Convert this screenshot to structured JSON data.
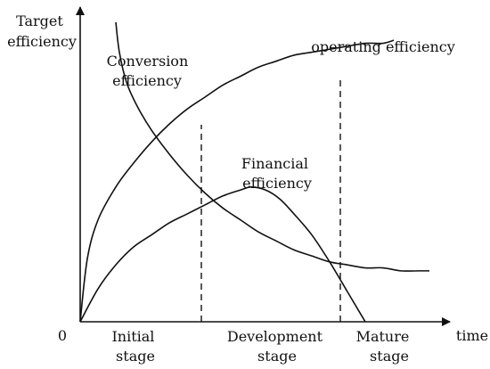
{
  "chart_data": {
    "type": "line",
    "ylabel": [
      "Target",
      "efficiency"
    ],
    "xlabel": "time",
    "origin_label": "0",
    "x_range": [
      0,
      1
    ],
    "y_range": [
      0,
      1
    ],
    "grid": false,
    "legend": "none",
    "series": [
      {
        "name": "operating efficiency",
        "name_lines": [
          "operating efficiency"
        ],
        "points": [
          [
            0,
            0
          ],
          [
            0.02,
            0.21
          ],
          [
            0.05,
            0.34
          ],
          [
            0.1,
            0.45
          ],
          [
            0.15,
            0.53
          ],
          [
            0.2,
            0.6
          ],
          [
            0.25,
            0.66
          ],
          [
            0.3,
            0.71
          ],
          [
            0.35,
            0.75
          ],
          [
            0.4,
            0.79
          ],
          [
            0.45,
            0.82
          ],
          [
            0.5,
            0.85
          ],
          [
            0.55,
            0.87
          ],
          [
            0.6,
            0.89
          ],
          [
            0.65,
            0.9
          ],
          [
            0.7,
            0.91
          ],
          [
            0.75,
            0.92
          ],
          [
            0.8,
            0.93
          ],
          [
            0.85,
            0.93
          ],
          [
            0.88,
            0.94
          ]
        ]
      },
      {
        "name": "Conversion efficiency",
        "name_lines": [
          "Conversion",
          "efficiency"
        ],
        "points": [
          [
            0.1,
            1.0
          ],
          [
            0.11,
            0.9
          ],
          [
            0.13,
            0.8
          ],
          [
            0.16,
            0.72
          ],
          [
            0.2,
            0.64
          ],
          [
            0.25,
            0.56
          ],
          [
            0.3,
            0.49
          ],
          [
            0.35,
            0.43
          ],
          [
            0.4,
            0.38
          ],
          [
            0.45,
            0.34
          ],
          [
            0.5,
            0.3
          ],
          [
            0.55,
            0.27
          ],
          [
            0.6,
            0.24
          ],
          [
            0.65,
            0.22
          ],
          [
            0.7,
            0.2
          ],
          [
            0.75,
            0.19
          ],
          [
            0.8,
            0.18
          ],
          [
            0.85,
            0.18
          ],
          [
            0.9,
            0.17
          ],
          [
            0.95,
            0.17
          ],
          [
            0.98,
            0.17
          ]
        ]
      },
      {
        "name": "Financial efficiency",
        "name_lines": [
          "Financial",
          "efficiency"
        ],
        "points": [
          [
            0,
            0
          ],
          [
            0.05,
            0.11
          ],
          [
            0.1,
            0.19
          ],
          [
            0.15,
            0.25
          ],
          [
            0.2,
            0.29
          ],
          [
            0.25,
            0.33
          ],
          [
            0.3,
            0.36
          ],
          [
            0.35,
            0.39
          ],
          [
            0.4,
            0.42
          ],
          [
            0.45,
            0.44
          ],
          [
            0.48,
            0.45
          ],
          [
            0.52,
            0.44
          ],
          [
            0.56,
            0.41
          ],
          [
            0.6,
            0.36
          ],
          [
            0.65,
            0.29
          ],
          [
            0.7,
            0.2
          ],
          [
            0.75,
            0.1
          ],
          [
            0.79,
            0.02
          ],
          [
            0.8,
            0.0
          ]
        ]
      }
    ],
    "dividers_x": [
      0.34,
      0.73
    ],
    "stages": [
      {
        "lines": [
          "Initial",
          "stage"
        ],
        "x": 0.17
      },
      {
        "lines": [
          "Development",
          "stage"
        ],
        "x": 0.53
      },
      {
        "lines": [
          "Mature",
          "stage"
        ],
        "x": 0.82
      }
    ]
  }
}
